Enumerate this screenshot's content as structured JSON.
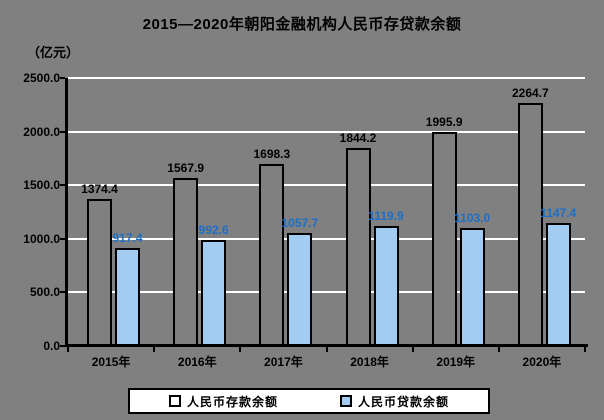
{
  "title": "2015—2020年朝阳金融机构人民币存贷款余额",
  "unit_label": "（亿元）",
  "colors": {
    "background": "#808080",
    "gridline": "#ffffff",
    "axis": "#000000",
    "deposit_bar_fill": "#808080",
    "loan_bar_fill": "#A3CCF2",
    "deposit_label_color": "#000000",
    "loan_label_color": "#1C6FC8",
    "legend_background": "#ffffff"
  },
  "chart_data": {
    "type": "bar",
    "title": "2015—2020年朝阳金融机构人民币存贷款余额",
    "ylabel": "（亿元）",
    "xlabel": "",
    "categories": [
      "2015年",
      "2016年",
      "2017年",
      "2018年",
      "2019年",
      "2020年"
    ],
    "series": [
      {
        "name": "人民币存款余额",
        "values": [
          1374.4,
          1567.9,
          1698.3,
          1844.2,
          1995.9,
          2264.7
        ],
        "fill": "#808080",
        "label_color": "#000000"
      },
      {
        "name": "人民币贷款余额",
        "values": [
          917.4,
          992.6,
          1057.7,
          1119.9,
          1103.0,
          1147.4
        ],
        "fill": "#A3CCF2",
        "label_color": "#1C6FC8"
      }
    ],
    "ylim": [
      0,
      2500
    ],
    "ytick_step": 500,
    "ytick_labels": [
      "0.0",
      "500.0",
      "1000.0",
      "1500.0",
      "2000.0",
      "2500.0"
    ],
    "grid": true,
    "legend_position": "bottom",
    "value_decimals": 1
  }
}
